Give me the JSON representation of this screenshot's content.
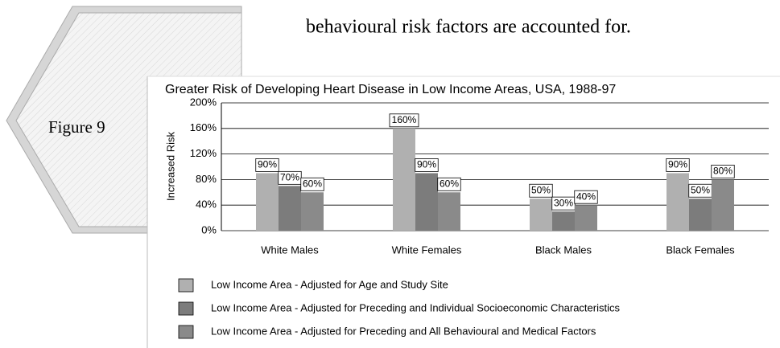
{
  "body_text": "behavioural risk factors are accounted for.",
  "figure_label": "Figure  9",
  "chart_data": {
    "type": "bar",
    "title": "Greater Risk of Developing Heart Disease in Low Income Areas, USA, 1988-97",
    "y_label": "Increased Risk",
    "categories": [
      "White Males",
      "White Females",
      "Black Males",
      "Black Females"
    ],
    "series": [
      {
        "name": "Low Income Area - Adjusted for Age and Study Site",
        "color": "#b0b0b0",
        "values": [
          90,
          160,
          50,
          90
        ],
        "value_labels": [
          "90%",
          "160%",
          "50%",
          "90%"
        ]
      },
      {
        "name": "Low Income Area - Adjusted for Preceding and Individual Socioeconomic Characteristics",
        "color": "#7c7c7c",
        "values": [
          70,
          90,
          30,
          50
        ],
        "value_labels": [
          "70%",
          "90%",
          "30%",
          "50%"
        ]
      },
      {
        "name": "Low Income Area - Adjusted for Preceding and All Behavioural and Medical Factors",
        "color": "#8a8a8a",
        "values": [
          60,
          60,
          40,
          80
        ],
        "value_labels": [
          "60%",
          "60%",
          "40%",
          "80%"
        ]
      }
    ],
    "ylim": [
      0,
      200
    ],
    "yticks": [
      {
        "value": 0,
        "label": "0%"
      },
      {
        "value": 40,
        "label": "40%"
      },
      {
        "value": 80,
        "label": "80%"
      },
      {
        "value": 120,
        "label": "120%"
      },
      {
        "value": 160,
        "label": "160%"
      },
      {
        "value": 200,
        "label": "200%"
      }
    ],
    "grid": true
  }
}
